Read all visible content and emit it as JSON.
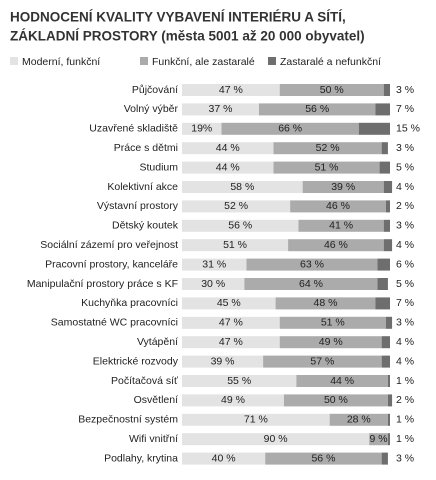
{
  "chart_data": {
    "type": "stacked-bar-horizontal",
    "title": [
      "HODNOCENÍ KVALITY VYBAVENÍ INTERIÉRU A SÍTÍ,",
      "ZÁKLADNÍ PROSTORY (města 5001 až 20 000 obyvatel)"
    ],
    "categories": [
      "Půjčování",
      "Volný výběr",
      "Uzavřené skladiště",
      "Práce s dětmi",
      "Studium",
      "Kolektivní akce",
      "Výstavní prostory",
      "Dětský koutek",
      "Sociální zázemí pro veřejnost",
      "Pracovní prostory, kanceláře",
      "Manipulační prostory práce s KF",
      "Kuchyňka pracovníci",
      "Samostatné WC pracovníci",
      "Vytápění",
      "Elektrické rozvody",
      "Počítačová síť",
      "Osvětlení",
      "Bezpečnostní systém",
      "Wifi vnitřní",
      "Podlahy, krytina"
    ],
    "series": [
      {
        "name": "Moderní, funkční",
        "color": "#e3e3e3",
        "values": [
          47,
          37,
          19,
          44,
          44,
          58,
          52,
          56,
          51,
          31,
          30,
          45,
          47,
          47,
          39,
          55,
          49,
          71,
          90,
          40
        ],
        "value_labels": [
          "47 %",
          "37 %",
          "19%",
          "44 %",
          "44 %",
          "58 %",
          "52 %",
          "56 %",
          "51 %",
          "31 %",
          "30 %",
          "45 %",
          "47 %",
          "47 %",
          "39 %",
          "55 %",
          "49 %",
          "71 %",
          "90 %",
          "40 %"
        ]
      },
      {
        "name": "Funkční, ale zastaralé",
        "color": "#ababab",
        "values": [
          50,
          56,
          66,
          52,
          51,
          39,
          46,
          41,
          46,
          63,
          64,
          48,
          51,
          49,
          57,
          44,
          50,
          28,
          9,
          56
        ],
        "value_labels": [
          "50 %",
          "56 %",
          "66 %",
          "52 %",
          "51 %",
          "39 %",
          "46 %",
          "41 %",
          "46 %",
          "63 %",
          "64 %",
          "48 %",
          "51 %",
          "49 %",
          "57 %",
          "44 %",
          "50 %",
          "28 %",
          "9 %",
          "56 %"
        ]
      },
      {
        "name": "Zastaralé a nefunkční",
        "color": "#6e6e6e",
        "values": [
          3,
          7,
          15,
          3,
          5,
          4,
          2,
          3,
          4,
          6,
          5,
          7,
          3,
          4,
          4,
          1,
          2,
          1,
          1,
          3
        ],
        "value_labels": [
          "3 %",
          "7 %",
          "15 %",
          "3 %",
          "5 %",
          "4 %",
          "2 %",
          "3 %",
          "4 %",
          "6 %",
          "5 %",
          "7 %",
          "3 %",
          "4 %",
          "4 %",
          "1 %",
          "2 %",
          "1 %",
          "1 %",
          "3 %"
        ]
      }
    ],
    "xlim": [
      0,
      100
    ]
  }
}
